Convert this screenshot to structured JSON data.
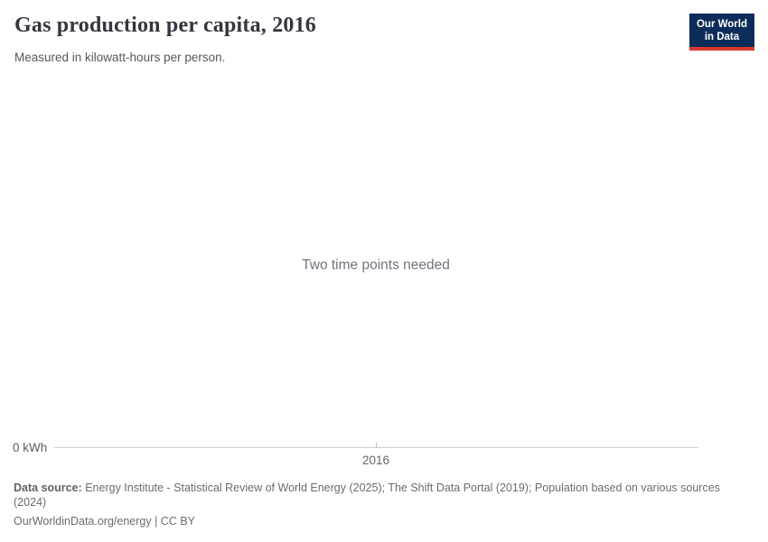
{
  "header": {
    "title": "Gas production per capita, 2016",
    "subtitle": "Measured in kilowatt-hours per person.",
    "logo": {
      "line1": "Our World",
      "line2": "in Data"
    }
  },
  "colors": {
    "logo_background": "#0c2d5a",
    "logo_accent_red": "#d9392f",
    "axis_line": "#d0d0d0",
    "axis_label": "#5c5c5c",
    "message_text": "#6f757d",
    "footer_text": "#6c6c6c"
  },
  "chart": {
    "empty_message": "Two time points needed",
    "y_axis_zero_label": "0 kWh",
    "x_tick_label": "2016"
  },
  "chart_data": {
    "type": "line",
    "title": "Gas production per capita, 2016",
    "subtitle": "Measured in kilowatt-hours per person.",
    "unit": "kilowatt-hours per person",
    "x": [
      "2016"
    ],
    "series": [],
    "ylabel": "kWh",
    "ylim": [
      0,
      null
    ],
    "grid": false,
    "legend_position": "none",
    "empty_state": true,
    "annotations": [
      "Two time points needed"
    ]
  },
  "footer": {
    "datasource_label": "Data source:",
    "datasource_text": "Energy Institute - Statistical Review of World Energy (2025); The Shift Data Portal (2019); Population based on various sources (2024)",
    "attribution": "OurWorldinData.org/energy | CC BY"
  }
}
